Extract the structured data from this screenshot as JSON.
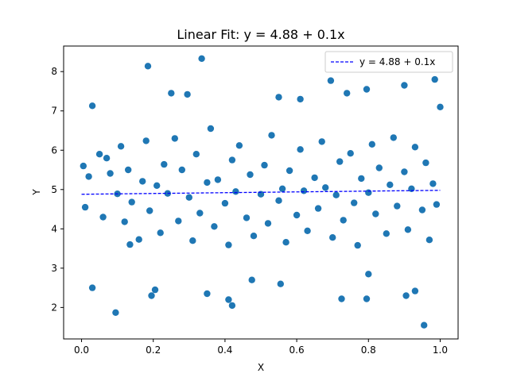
{
  "chart_data": {
    "type": "scatter",
    "title": "Linear Fit: y = 4.88 + 0.1x",
    "xlabel": "X",
    "ylabel": "Y",
    "xlim": [
      -0.05,
      1.05
    ],
    "ylim": [
      1.2,
      8.65
    ],
    "x_ticks": [
      0.0,
      0.2,
      0.4,
      0.6,
      0.8,
      1.0
    ],
    "x_tick_labels": [
      "0.0",
      "0.2",
      "0.4",
      "0.6",
      "0.8",
      "1.0"
    ],
    "y_ticks": [
      2,
      3,
      4,
      5,
      6,
      7,
      8
    ],
    "y_tick_labels": [
      "2",
      "3",
      "4",
      "5",
      "6",
      "7",
      "8"
    ],
    "grid": false,
    "legend": {
      "placement": "top-right",
      "entries": [
        "y = 4.88 + 0.1x"
      ]
    },
    "colors": {
      "points": "#1f77b4",
      "fit_line": "#0000ff"
    },
    "fit": {
      "intercept": 4.88,
      "slope": 0.1,
      "x_range": [
        0.0,
        1.0
      ],
      "style": "dashed"
    },
    "series": [
      {
        "name": "data points",
        "points": [
          [
            0.01,
            4.55
          ],
          [
            0.02,
            5.33
          ],
          [
            0.03,
            7.13
          ],
          [
            0.05,
            5.9
          ],
          [
            0.06,
            4.3
          ],
          [
            0.08,
            5.41
          ],
          [
            0.1,
            4.89
          ],
          [
            0.11,
            6.1
          ],
          [
            0.12,
            4.18
          ],
          [
            0.13,
            5.5
          ],
          [
            0.14,
            4.68
          ],
          [
            0.16,
            3.73
          ],
          [
            0.17,
            5.21
          ],
          [
            0.18,
            6.24
          ],
          [
            0.19,
            4.46
          ],
          [
            0.21,
            5.1
          ],
          [
            0.22,
            3.9
          ],
          [
            0.23,
            5.64
          ],
          [
            0.24,
            4.9
          ],
          [
            0.26,
            6.3
          ],
          [
            0.27,
            4.2
          ],
          [
            0.28,
            5.5
          ],
          [
            0.3,
            4.8
          ],
          [
            0.31,
            3.7
          ],
          [
            0.32,
            5.9
          ],
          [
            0.33,
            4.4
          ],
          [
            0.35,
            5.18
          ],
          [
            0.36,
            6.55
          ],
          [
            0.37,
            4.06
          ],
          [
            0.38,
            5.25
          ],
          [
            0.4,
            4.65
          ],
          [
            0.41,
            3.59
          ],
          [
            0.42,
            5.75
          ],
          [
            0.43,
            4.95
          ],
          [
            0.44,
            6.12
          ],
          [
            0.46,
            4.28
          ],
          [
            0.47,
            5.38
          ],
          [
            0.48,
            3.82
          ],
          [
            0.5,
            4.88
          ],
          [
            0.51,
            5.62
          ],
          [
            0.52,
            4.14
          ],
          [
            0.53,
            6.38
          ],
          [
            0.55,
            4.72
          ],
          [
            0.56,
            5.02
          ],
          [
            0.57,
            3.66
          ],
          [
            0.58,
            5.48
          ],
          [
            0.6,
            4.35
          ],
          [
            0.61,
            6.02
          ],
          [
            0.62,
            4.97
          ],
          [
            0.63,
            3.95
          ],
          [
            0.65,
            5.3
          ],
          [
            0.66,
            4.52
          ],
          [
            0.67,
            6.22
          ],
          [
            0.68,
            5.05
          ],
          [
            0.7,
            3.78
          ],
          [
            0.71,
            4.86
          ],
          [
            0.72,
            5.71
          ],
          [
            0.73,
            4.22
          ],
          [
            0.75,
            5.92
          ],
          [
            0.76,
            4.66
          ],
          [
            0.77,
            3.58
          ],
          [
            0.78,
            5.28
          ],
          [
            0.8,
            4.92
          ],
          [
            0.81,
            6.15
          ],
          [
            0.82,
            4.38
          ],
          [
            0.83,
            5.55
          ],
          [
            0.85,
            3.88
          ],
          [
            0.86,
            5.12
          ],
          [
            0.87,
            6.32
          ],
          [
            0.88,
            4.58
          ],
          [
            0.9,
            5.45
          ],
          [
            0.91,
            3.98
          ],
          [
            0.92,
            5.02
          ],
          [
            0.93,
            6.08
          ],
          [
            0.95,
            4.48
          ],
          [
            0.96,
            5.68
          ],
          [
            0.97,
            3.72
          ],
          [
            0.98,
            5.15
          ],
          [
            0.99,
            4.62
          ],
          [
            0.005,
            5.6
          ],
          [
            0.03,
            2.5
          ],
          [
            0.07,
            5.8
          ],
          [
            0.095,
            1.87
          ],
          [
            0.135,
            3.6
          ],
          [
            0.185,
            8.14
          ],
          [
            0.195,
            2.3
          ],
          [
            0.205,
            2.45
          ],
          [
            0.25,
            7.45
          ],
          [
            0.295,
            7.42
          ],
          [
            0.335,
            8.33
          ],
          [
            0.35,
            2.35
          ],
          [
            0.41,
            2.2
          ],
          [
            0.42,
            2.05
          ],
          [
            0.475,
            2.7
          ],
          [
            0.55,
            7.35
          ],
          [
            0.555,
            2.6
          ],
          [
            0.61,
            7.3
          ],
          [
            0.695,
            7.77
          ],
          [
            0.725,
            2.22
          ],
          [
            0.74,
            7.45
          ],
          [
            0.795,
            7.55
          ],
          [
            0.795,
            2.22
          ],
          [
            0.8,
            2.85
          ],
          [
            0.9,
            7.65
          ],
          [
            0.905,
            2.3
          ],
          [
            0.93,
            2.42
          ],
          [
            0.955,
            1.55
          ],
          [
            0.985,
            7.8
          ],
          [
            1.0,
            7.1
          ]
        ]
      }
    ]
  }
}
